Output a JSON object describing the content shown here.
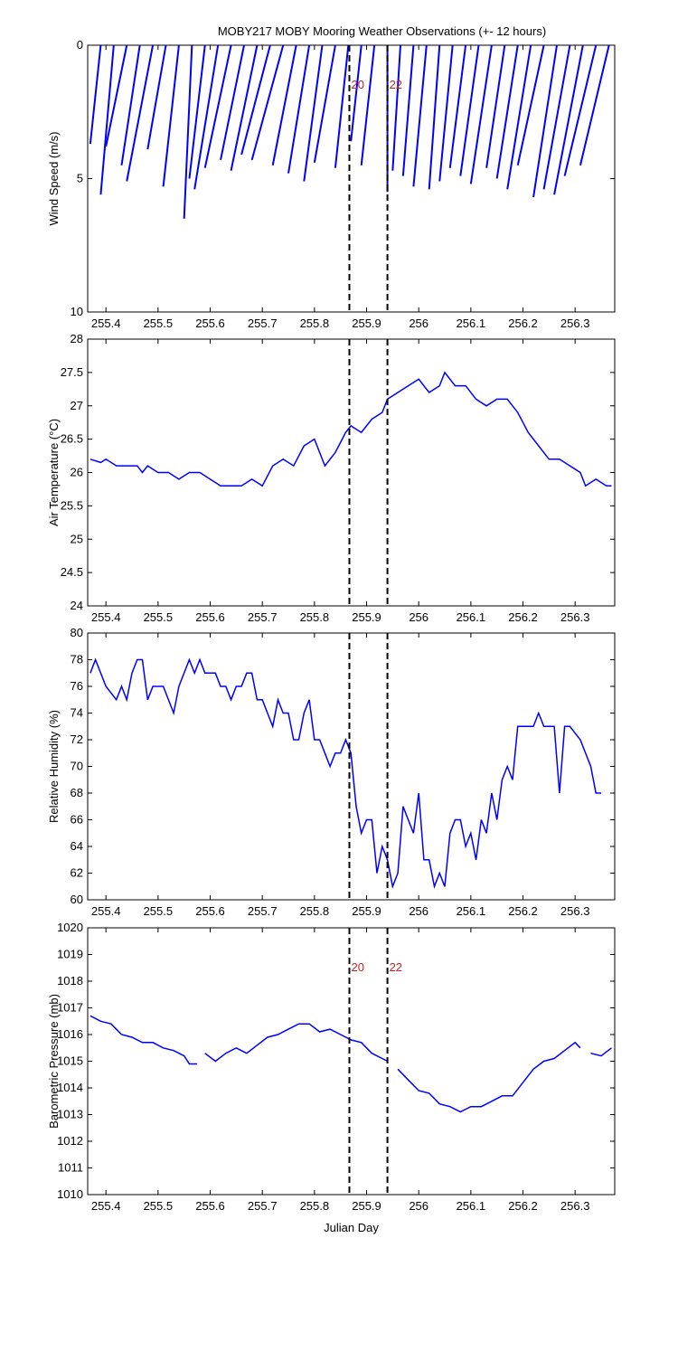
{
  "chart_data": [
    {
      "type": "stick",
      "title": "MOBY217 MOBY Mooring Weather Observations (+- 12 hours)",
      "ylabel": "Wind Speed (m/s)",
      "color": "#0000ff",
      "xlim": [
        255.365,
        256.376
      ],
      "xticks": [
        255.4,
        255.5,
        255.6,
        255.7,
        255.8,
        255.9,
        256,
        256.1,
        256.2,
        256.3
      ],
      "ylim": [
        0,
        10
      ],
      "yticks": [
        0,
        5,
        10
      ],
      "yreverse": true,
      "vlines": [
        255.867,
        255.94
      ],
      "vline_labels": [
        "20",
        "22"
      ],
      "x": [
        255.39,
        255.415,
        255.44,
        255.465,
        255.49,
        255.515,
        255.54,
        255.565,
        255.59,
        255.615,
        255.64,
        255.665,
        255.69,
        255.715,
        255.74,
        255.765,
        255.79,
        255.815,
        255.84,
        255.865,
        255.89,
        255.915,
        255.94,
        255.965,
        255.99,
        256.015,
        256.04,
        256.065,
        256.09,
        256.115,
        256.14,
        256.165,
        256.19,
        256.215,
        256.24,
        256.265,
        256.29,
        256.315,
        256.34,
        256.365
      ],
      "x_end": [
        255.37,
        255.39,
        255.4,
        255.43,
        255.44,
        255.48,
        255.51,
        255.55,
        255.56,
        255.57,
        255.59,
        255.62,
        255.64,
        255.66,
        255.68,
        255.72,
        255.75,
        255.78,
        255.8,
        255.84,
        255.87,
        255.89,
        255.94,
        255.95,
        255.97,
        255.99,
        256.02,
        256.04,
        256.06,
        256.08,
        256.1,
        256.13,
        256.15,
        256.17,
        256.19,
        256.22,
        256.24,
        256.26,
        256.28,
        256.31
      ],
      "values": [
        3.7,
        5.6,
        3.8,
        4.5,
        5.1,
        3.9,
        5.3,
        6.5,
        5.0,
        5.4,
        4.6,
        4.3,
        4.7,
        4.1,
        4.3,
        4.5,
        4.8,
        5.1,
        4.4,
        4.6,
        3.6,
        4.5,
        5.5,
        4.7,
        4.9,
        5.3,
        5.4,
        5.1,
        4.6,
        4.9,
        5.2,
        4.6,
        5.0,
        5.4,
        4.5,
        5.7,
        5.4,
        5.6,
        4.9,
        4.5
      ]
    },
    {
      "type": "line",
      "ylabel": "Air Temperature (°C)",
      "color": "#0000ff",
      "xlim": [
        255.365,
        256.376
      ],
      "xticks": [
        255.4,
        255.5,
        255.6,
        255.7,
        255.8,
        255.9,
        256,
        256.1,
        256.2,
        256.3
      ],
      "ylim": [
        24,
        28
      ],
      "yticks": [
        24,
        24.5,
        25,
        25.5,
        26,
        26.5,
        27,
        27.5,
        28
      ],
      "vlines": [
        255.867,
        255.94
      ],
      "x": [
        255.37,
        255.39,
        255.4,
        255.42,
        255.44,
        255.46,
        255.47,
        255.48,
        255.5,
        255.52,
        255.54,
        255.56,
        255.58,
        255.6,
        255.62,
        255.64,
        255.66,
        255.68,
        255.7,
        255.72,
        255.74,
        255.76,
        255.78,
        255.8,
        255.82,
        255.84,
        255.86,
        255.87,
        255.89,
        255.91,
        255.93,
        255.94,
        255.96,
        255.98,
        256.0,
        256.02,
        256.04,
        256.05,
        256.07,
        256.09,
        256.11,
        256.13,
        256.15,
        256.17,
        256.19,
        256.21,
        256.23,
        256.25,
        256.27,
        256.29,
        256.31,
        256.32,
        256.34,
        256.36,
        256.37
      ],
      "values": [
        26.2,
        26.15,
        26.2,
        26.1,
        26.1,
        26.1,
        26.0,
        26.1,
        26.0,
        26.0,
        25.9,
        26.0,
        26.0,
        25.9,
        25.8,
        25.8,
        25.8,
        25.9,
        25.8,
        26.1,
        26.2,
        26.1,
        26.4,
        26.5,
        26.1,
        26.3,
        26.6,
        26.7,
        26.6,
        26.8,
        26.9,
        27.1,
        27.2,
        27.3,
        27.4,
        27.2,
        27.3,
        27.5,
        27.3,
        27.3,
        27.1,
        27.0,
        27.1,
        27.1,
        26.9,
        26.6,
        26.4,
        26.2,
        26.2,
        26.1,
        26.0,
        25.8,
        25.9,
        25.8,
        25.8
      ]
    },
    {
      "type": "line",
      "ylabel": "Relative Humidity (%)",
      "color": "#0000ff",
      "xlim": [
        255.365,
        256.376
      ],
      "xticks": [
        255.4,
        255.5,
        255.6,
        255.7,
        255.8,
        255.9,
        256,
        256.1,
        256.2,
        256.3
      ],
      "ylim": [
        60,
        80
      ],
      "yticks": [
        60,
        62,
        64,
        66,
        68,
        70,
        72,
        74,
        76,
        78,
        80
      ],
      "vlines": [
        255.867,
        255.94
      ],
      "x": [
        255.37,
        255.38,
        255.4,
        255.42,
        255.43,
        255.44,
        255.45,
        255.46,
        255.47,
        255.48,
        255.49,
        255.51,
        255.53,
        255.54,
        255.56,
        255.57,
        255.58,
        255.59,
        255.61,
        255.62,
        255.63,
        255.64,
        255.65,
        255.66,
        255.67,
        255.68,
        255.69,
        255.7,
        255.71,
        255.72,
        255.73,
        255.74,
        255.75,
        255.76,
        255.77,
        255.78,
        255.79,
        255.8,
        255.81,
        255.82,
        255.83,
        255.84,
        255.85,
        255.86,
        255.87,
        255.88,
        255.89,
        255.9,
        255.91,
        255.92,
        255.93,
        255.94,
        255.95,
        255.96,
        255.97,
        255.98,
        255.99,
        256.0,
        256.01,
        256.02,
        256.03,
        256.04,
        256.05,
        256.06,
        256.07,
        256.08,
        256.09,
        256.1,
        256.11,
        256.12,
        256.13,
        256.14,
        256.15,
        256.16,
        256.17,
        256.18,
        256.19,
        256.2,
        256.22,
        256.23,
        256.24,
        256.26,
        256.27,
        256.28,
        256.29,
        256.31,
        256.33,
        256.34,
        256.35
      ],
      "values": [
        77,
        78,
        76,
        75,
        76,
        75,
        77,
        78,
        78,
        75,
        76,
        76,
        74,
        76,
        78,
        77,
        78,
        77,
        77,
        76,
        76,
        75,
        76,
        76,
        77,
        77,
        75,
        75,
        74,
        73,
        75,
        74,
        74,
        72,
        72,
        74,
        75,
        72,
        72,
        71,
        70,
        71,
        71,
        72,
        71,
        67,
        65,
        66,
        66,
        62,
        64,
        63,
        61,
        62,
        67,
        66,
        65,
        68,
        63,
        63,
        61,
        62,
        61,
        65,
        66,
        66,
        64,
        65,
        63,
        66,
        65,
        68,
        66,
        69,
        70,
        69,
        73,
        73,
        73,
        74,
        73,
        73,
        68,
        73,
        73,
        72,
        70,
        68,
        68
      ]
    },
    {
      "type": "line",
      "ylabel": "Barometric Pressure (mb)",
      "xlabel": "Julian Day",
      "color": "#0000ff",
      "xlim": [
        255.365,
        256.376
      ],
      "xticks": [
        255.4,
        255.5,
        255.6,
        255.7,
        255.8,
        255.9,
        256,
        256.1,
        256.2,
        256.3
      ],
      "ylim": [
        1010,
        1020
      ],
      "yticks": [
        1010,
        1011,
        1012,
        1013,
        1014,
        1015,
        1016,
        1017,
        1018,
        1019,
        1020
      ],
      "vlines": [
        255.867,
        255.94
      ],
      "vline_labels": [
        "20",
        "22"
      ],
      "x": [
        255.37,
        255.39,
        255.41,
        255.43,
        255.45,
        255.47,
        255.49,
        255.51,
        255.53,
        255.55,
        255.56,
        255.575,
        255.58,
        255.59,
        255.61,
        255.63,
        255.65,
        255.67,
        255.69,
        255.71,
        255.73,
        255.75,
        255.77,
        255.79,
        255.81,
        255.83,
        255.85,
        255.87,
        255.89,
        255.91,
        255.93,
        255.94,
        255.95,
        255.96,
        255.98,
        256.0,
        256.02,
        256.04,
        256.06,
        256.08,
        256.1,
        256.12,
        256.14,
        256.16,
        256.18,
        256.2,
        256.22,
        256.24,
        256.26,
        256.28,
        256.3,
        256.31,
        256.32,
        256.33,
        256.35,
        256.37
      ],
      "values": [
        1016.7,
        1016.5,
        1016.4,
        1016.0,
        1015.9,
        1015.7,
        1015.7,
        1015.5,
        1015.4,
        1015.2,
        1014.9,
        1014.9,
        null,
        1015.3,
        1015.0,
        1015.3,
        1015.5,
        1015.3,
        1015.6,
        1015.9,
        1016.0,
        1016.2,
        1016.4,
        1016.4,
        1016.1,
        1016.2,
        1016.0,
        1015.8,
        1015.7,
        1015.3,
        1015.1,
        1015.0,
        null,
        1014.7,
        1014.3,
        1013.9,
        1013.8,
        1013.4,
        1013.3,
        1013.1,
        1013.3,
        1013.3,
        1013.5,
        1013.7,
        1013.7,
        1014.2,
        1014.7,
        1015.0,
        1015.1,
        1015.4,
        1015.7,
        1015.5,
        null,
        1015.3,
        1015.2,
        1015.5
      ]
    }
  ]
}
